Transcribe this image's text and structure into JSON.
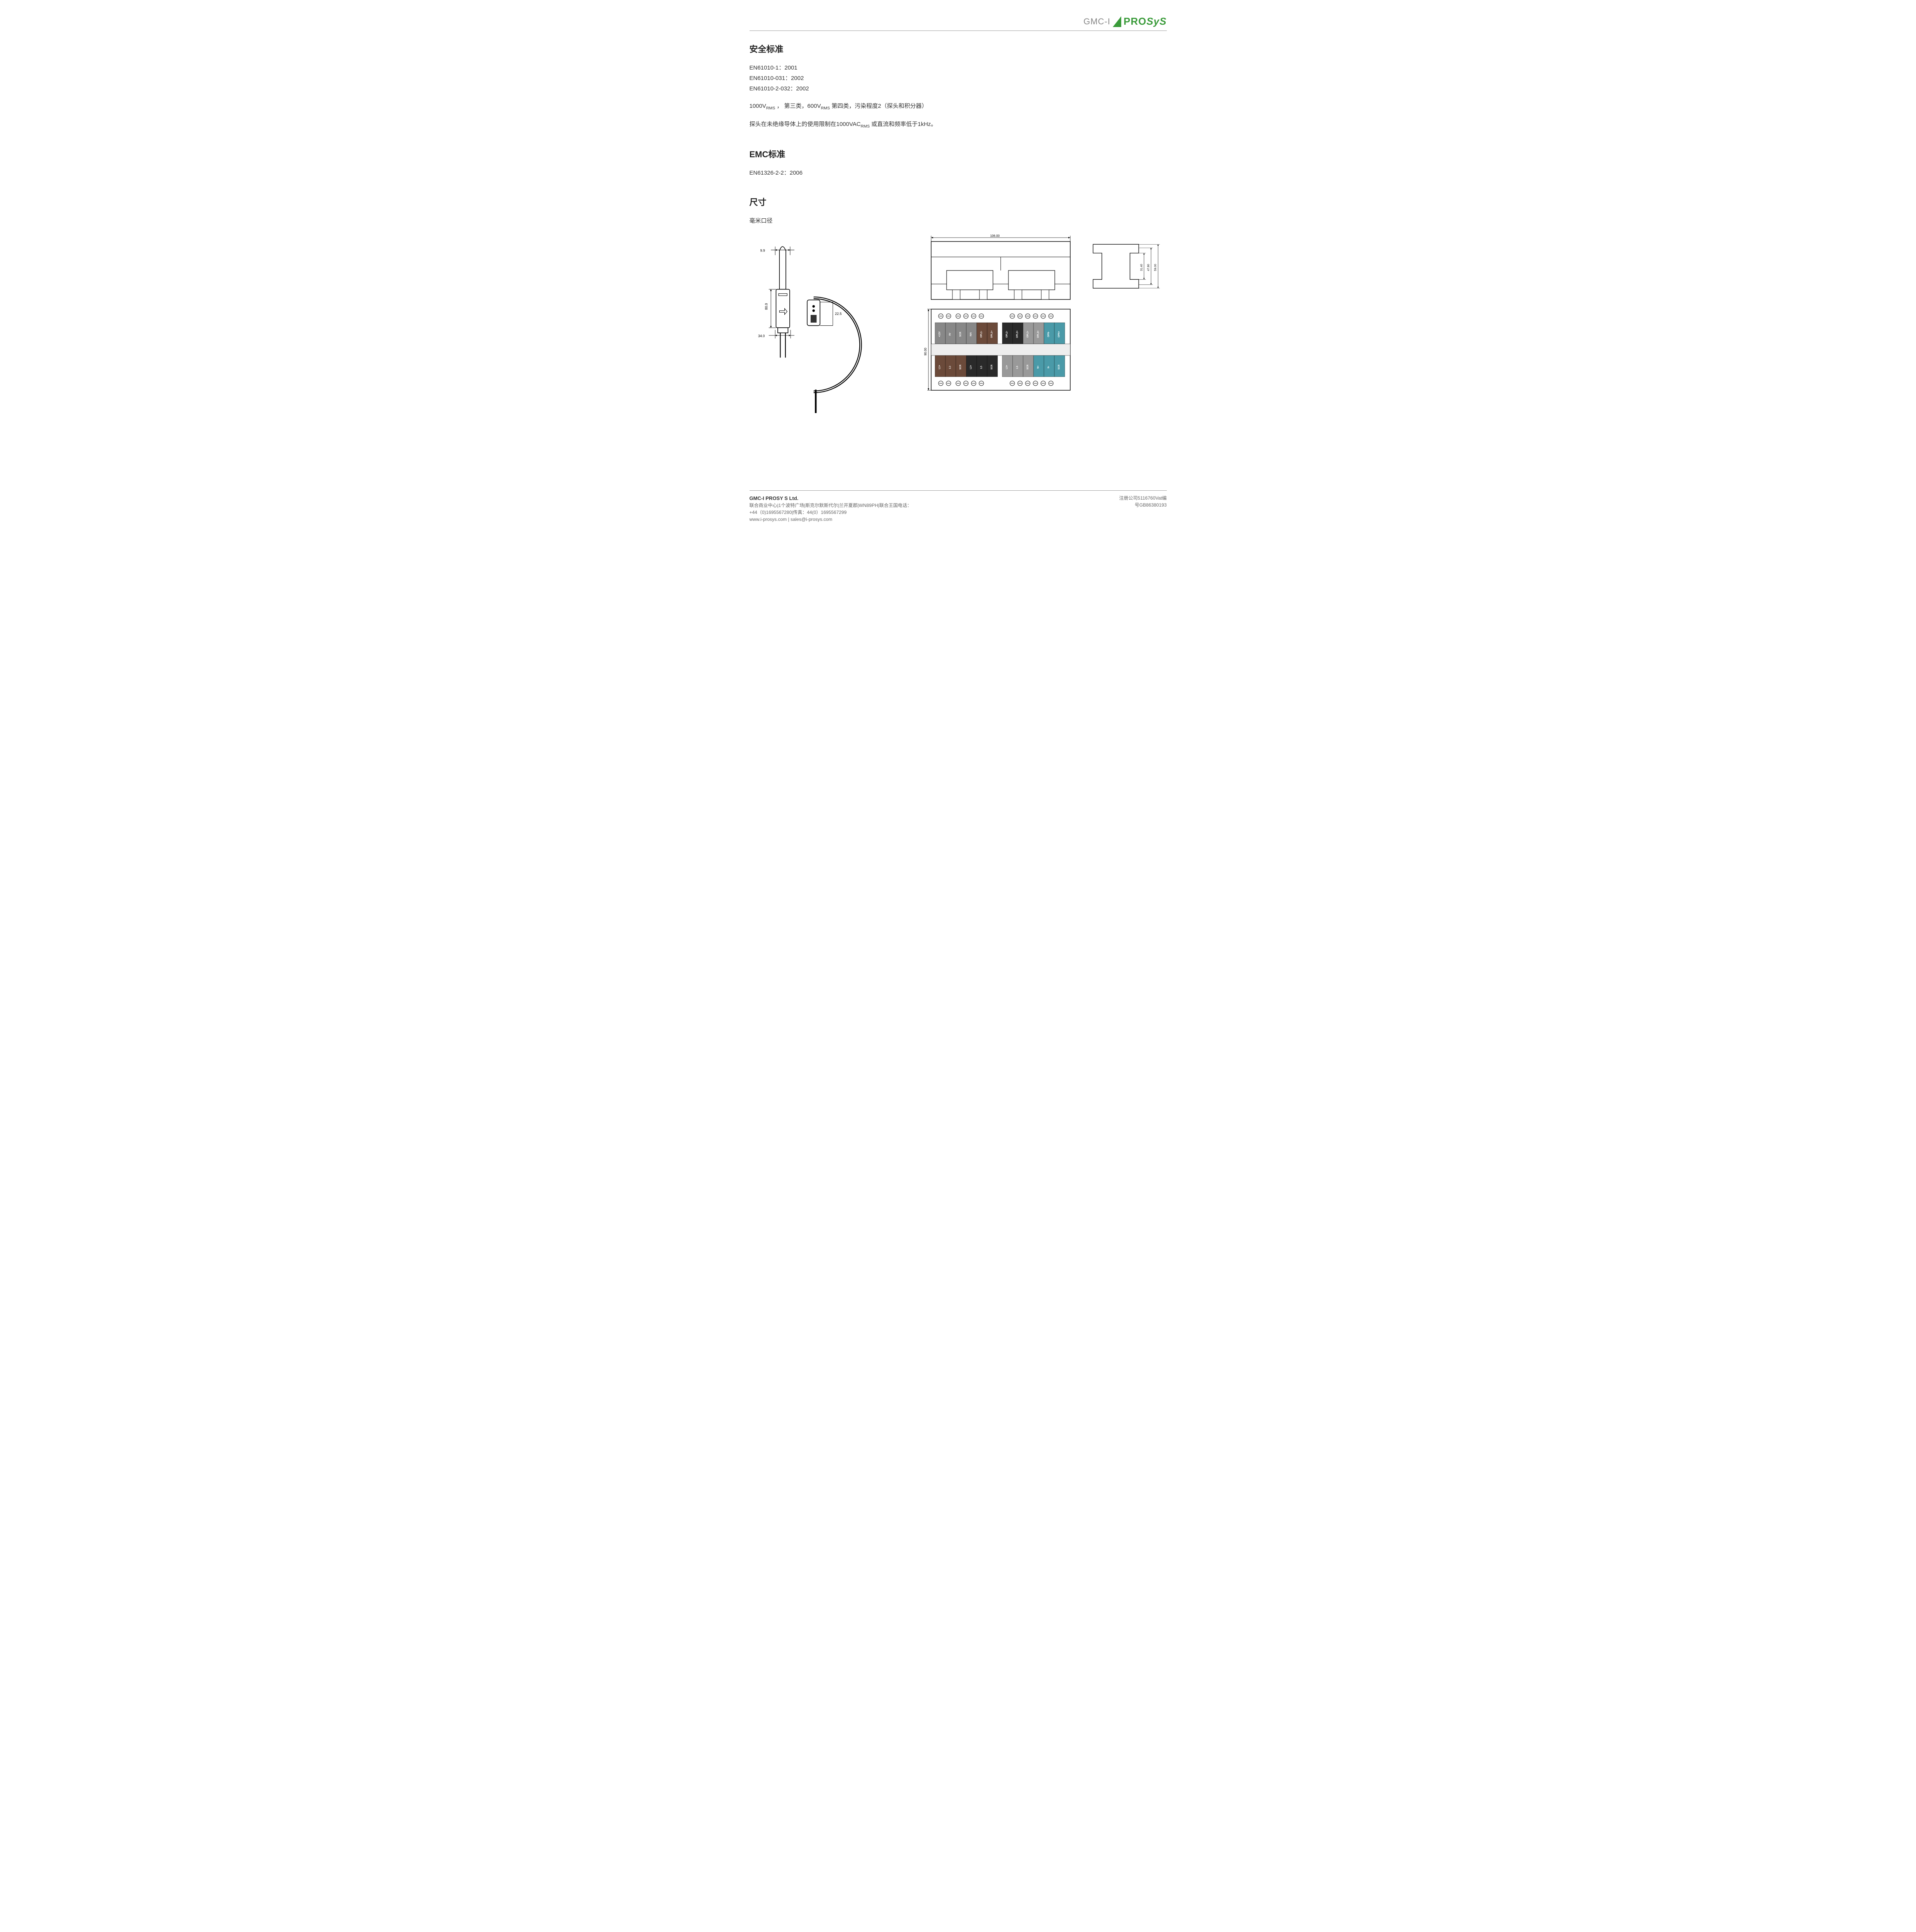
{
  "header": {
    "logo_gmc": "GMC-I",
    "logo_prosys_pro": "PRO",
    "logo_prosys_sys": "SyS"
  },
  "sections": {
    "safety": {
      "title": "安全标准",
      "lines": [
        "EN61010-1：2001",
        "EN61010-031：2002",
        "EN61010-2-032：2002"
      ],
      "rating_prefix": "1000V",
      "rating_sub1": "RMS",
      "rating_mid": " ， 第三类，600V",
      "rating_sub2": "RMS",
      "rating_suffix": " 第四类，污染程度2（探头和积分器）",
      "usage_prefix": "探头在未绝缘导体上的使用限制在1000VAC",
      "usage_sub": "RMS",
      "usage_suffix": " 或直流和频率低于1kHz。"
    },
    "emc": {
      "title": "EMC标准",
      "line": "EN61326-2-2：2006"
    },
    "dimensions": {
      "title": "尺寸",
      "subtitle": "毫米口径"
    }
  },
  "diagram": {
    "probe": {
      "dim_top": "9.9",
      "dim_connector": "22.5",
      "dim_height": "80.0",
      "dim_base": "34.0"
    },
    "module_top": {
      "width": "106.00"
    },
    "module_front": {
      "height": "90.00",
      "top_terminals": [
        "+12V",
        "0V",
        "SCR",
        "N/A",
        "OPL1-",
        "OPL1+",
        "OPL2-",
        "OPL2+",
        "OPL3-",
        "OPL3+",
        "OPN-",
        "OPN+"
      ],
      "bottom_terminals": [
        "L1+",
        "L1-",
        "SCR",
        "L2+",
        "L2-",
        "SCR",
        "L3+",
        "L3-",
        "SCR",
        "N+",
        "N-",
        "SCR"
      ],
      "colors": {
        "grey": "#888888",
        "brown": "#6b4a3a",
        "black": "#2a2a2a",
        "dkgrey": "#999999",
        "teal": "#4a9aa8"
      }
    },
    "module_side": {
      "dim1": "31.40",
      "dim2": "47.80",
      "dim3": "59.00"
    }
  },
  "footer": {
    "company": "GMC-I PROSY S Ltd.",
    "address": "联合商业中心|1个波特广场|斯克尔默斯代尔|兰开夏郡|WN89PH|联合王国电话：",
    "phone": "+44（0)1695567280|传真：44(0）1695567299",
    "web": "www.i-prosys.com | sales@i-prosys.com",
    "reg1": "注册公司5116760Vat编",
    "reg2": "号GB86380193"
  }
}
